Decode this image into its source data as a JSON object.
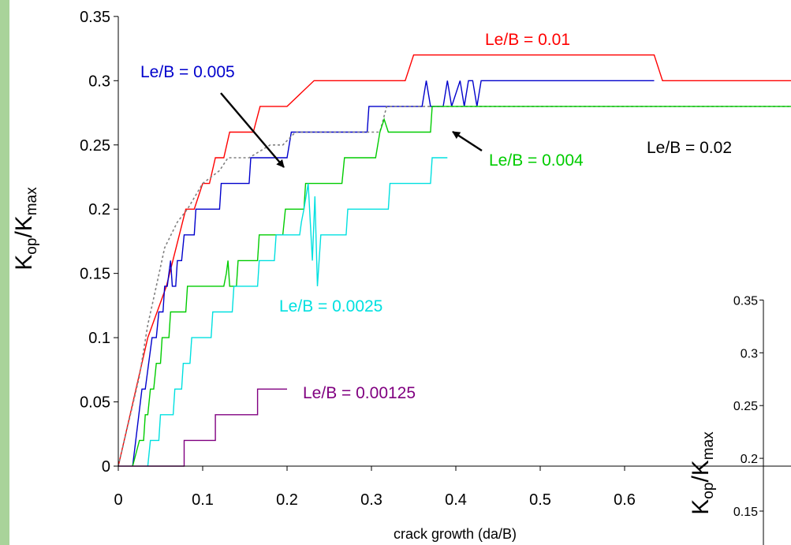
{
  "chart_data": [
    {
      "type": "line",
      "xlabel": "crack growth (da/B)",
      "ylabel": "K_op/K_max",
      "ylabel_main": "K",
      "ylabel_sub1": "op",
      "ylabel_slash": "/K",
      "ylabel_sub2": "max",
      "xlim": [
        0,
        0.7
      ],
      "ylim": [
        0,
        0.35
      ],
      "x_ticks": [
        "0",
        "0.1",
        "0.2",
        "0.3",
        "0.4",
        "0.5",
        "0.6"
      ],
      "y_ticks": [
        "0",
        "0.05",
        "0.1",
        "0.15",
        "0.2",
        "0.25",
        "0.3",
        "0.35"
      ],
      "grid": false,
      "legend": "none",
      "series": [
        {
          "name": "Le/B = 0.01",
          "color": "#ff0000",
          "dash": "solid",
          "points": [
            [
              0,
              0
            ],
            [
              0.035,
              0.1
            ],
            [
              0.057,
              0.14
            ],
            [
              0.08,
              0.2
            ],
            [
              0.09,
              0.2
            ],
            [
              0.1,
              0.22
            ],
            [
              0.108,
              0.22
            ],
            [
              0.115,
              0.24
            ],
            [
              0.125,
              0.24
            ],
            [
              0.132,
              0.26
            ],
            [
              0.16,
              0.26
            ],
            [
              0.168,
              0.28
            ],
            [
              0.2,
              0.28
            ],
            [
              0.232,
              0.3
            ],
            [
              0.34,
              0.3
            ],
            [
              0.35,
              0.32
            ],
            [
              0.635,
              0.32
            ],
            [
              0.645,
              0.3
            ],
            [
              0.8,
              0.3
            ]
          ]
        },
        {
          "name": "Le/B = 0.005",
          "color": "#0000cc",
          "dash": "solid",
          "points": [
            [
              0.017,
              0
            ],
            [
              0.028,
              0.06
            ],
            [
              0.032,
              0.06
            ],
            [
              0.04,
              0.1
            ],
            [
              0.045,
              0.1
            ],
            [
              0.048,
              0.12
            ],
            [
              0.053,
              0.12
            ],
            [
              0.055,
              0.14
            ],
            [
              0.058,
              0.14
            ],
            [
              0.06,
              0.15
            ],
            [
              0.062,
              0.16
            ],
            [
              0.064,
              0.14
            ],
            [
              0.068,
              0.14
            ],
            [
              0.07,
              0.16
            ],
            [
              0.075,
              0.16
            ],
            [
              0.078,
              0.18
            ],
            [
              0.09,
              0.18
            ],
            [
              0.092,
              0.2
            ],
            [
              0.12,
              0.2
            ],
            [
              0.122,
              0.22
            ],
            [
              0.155,
              0.22
            ],
            [
              0.157,
              0.24
            ],
            [
              0.2,
              0.24
            ],
            [
              0.205,
              0.26
            ],
            [
              0.295,
              0.26
            ],
            [
              0.297,
              0.28
            ],
            [
              0.36,
              0.28
            ],
            [
              0.365,
              0.3
            ],
            [
              0.37,
              0.28
            ],
            [
              0.385,
              0.28
            ],
            [
              0.39,
              0.3
            ],
            [
              0.395,
              0.28
            ],
            [
              0.405,
              0.3
            ],
            [
              0.41,
              0.28
            ],
            [
              0.415,
              0.3
            ],
            [
              0.42,
              0.3
            ],
            [
              0.425,
              0.28
            ],
            [
              0.43,
              0.3
            ],
            [
              0.635,
              0.3
            ]
          ]
        },
        {
          "name": "Le/B = 0.02",
          "color": "#808080",
          "dash": "dashed",
          "points": [
            [
              0,
              0
            ],
            [
              0.025,
              0.07
            ],
            [
              0.035,
              0.11
            ],
            [
              0.045,
              0.14
            ],
            [
              0.055,
              0.17
            ],
            [
              0.07,
              0.19
            ],
            [
              0.082,
              0.2
            ],
            [
              0.1,
              0.22
            ],
            [
              0.12,
              0.23
            ],
            [
              0.13,
              0.24
            ],
            [
              0.155,
              0.24
            ],
            [
              0.18,
              0.25
            ],
            [
              0.195,
              0.25
            ],
            [
              0.21,
              0.26
            ],
            [
              0.31,
              0.26
            ],
            [
              0.318,
              0.28
            ],
            [
              0.8,
              0.28
            ]
          ]
        },
        {
          "name": "Le/B = 0.004",
          "color": "#00cc00",
          "dash": "solid",
          "points": [
            [
              0.017,
              0
            ],
            [
              0.025,
              0.02
            ],
            [
              0.03,
              0.02
            ],
            [
              0.032,
              0.04
            ],
            [
              0.035,
              0.04
            ],
            [
              0.038,
              0.06
            ],
            [
              0.042,
              0.06
            ],
            [
              0.045,
              0.08
            ],
            [
              0.05,
              0.08
            ],
            [
              0.052,
              0.1
            ],
            [
              0.06,
              0.1
            ],
            [
              0.062,
              0.12
            ],
            [
              0.08,
              0.12
            ],
            [
              0.082,
              0.14
            ],
            [
              0.125,
              0.14
            ],
            [
              0.128,
              0.15
            ],
            [
              0.13,
              0.16
            ],
            [
              0.132,
              0.14
            ],
            [
              0.14,
              0.14
            ],
            [
              0.142,
              0.16
            ],
            [
              0.165,
              0.16
            ],
            [
              0.167,
              0.18
            ],
            [
              0.195,
              0.18
            ],
            [
              0.198,
              0.2
            ],
            [
              0.22,
              0.2
            ],
            [
              0.222,
              0.22
            ],
            [
              0.265,
              0.22
            ],
            [
              0.268,
              0.24
            ],
            [
              0.305,
              0.24
            ],
            [
              0.31,
              0.26
            ],
            [
              0.315,
              0.27
            ],
            [
              0.32,
              0.26
            ],
            [
              0.37,
              0.26
            ],
            [
              0.372,
              0.28
            ],
            [
              0.8,
              0.28
            ]
          ]
        },
        {
          "name": "Le/B = 0.0025",
          "color": "#00e0e0",
          "dash": "solid",
          "points": [
            [
              0.035,
              0
            ],
            [
              0.038,
              0.02
            ],
            [
              0.048,
              0.02
            ],
            [
              0.05,
              0.04
            ],
            [
              0.065,
              0.04
            ],
            [
              0.067,
              0.06
            ],
            [
              0.075,
              0.06
            ],
            [
              0.077,
              0.08
            ],
            [
              0.085,
              0.08
            ],
            [
              0.087,
              0.1
            ],
            [
              0.11,
              0.1
            ],
            [
              0.112,
              0.12
            ],
            [
              0.135,
              0.12
            ],
            [
              0.137,
              0.14
            ],
            [
              0.165,
              0.14
            ],
            [
              0.167,
              0.16
            ],
            [
              0.185,
              0.16
            ],
            [
              0.187,
              0.18
            ],
            [
              0.215,
              0.18
            ],
            [
              0.217,
              0.19
            ],
            [
              0.22,
              0.2
            ],
            [
              0.225,
              0.22
            ],
            [
              0.23,
              0.16
            ],
            [
              0.233,
              0.21
            ],
            [
              0.236,
              0.14
            ],
            [
              0.24,
              0.18
            ],
            [
              0.27,
              0.18
            ],
            [
              0.272,
              0.2
            ],
            [
              0.32,
              0.2
            ],
            [
              0.322,
              0.22
            ],
            [
              0.37,
              0.22
            ],
            [
              0.372,
              0.24
            ],
            [
              0.39,
              0.24
            ]
          ]
        },
        {
          "name": "Le/B = 0.00125",
          "color": "#800080",
          "dash": "solid",
          "points": [
            [
              0,
              0
            ],
            [
              0.078,
              0
            ],
            [
              0.078,
              0.02
            ],
            [
              0.115,
              0.02
            ],
            [
              0.115,
              0.04
            ],
            [
              0.165,
              0.04
            ],
            [
              0.165,
              0.06
            ],
            [
              0.2,
              0.06
            ]
          ]
        }
      ],
      "annotations": [
        {
          "text": "Le/B = 0.01",
          "color": "#ff0000"
        },
        {
          "text": "Le/B = 0.005",
          "color": "#0000cc"
        },
        {
          "text": "Le/B = 0.02",
          "color": "#000000"
        },
        {
          "text": "Le/B = 0.004",
          "color": "#00cc00"
        },
        {
          "text": "Le/B = 0.0025",
          "color": "#00e0e0"
        },
        {
          "text": "Le/B = 0.00125",
          "color": "#800080"
        }
      ]
    },
    {
      "type": "line",
      "ylabel": "K_op/K_max",
      "ylabel_main": "K",
      "ylabel_sub1": "op",
      "ylabel_slash": "/K",
      "ylabel_sub2": "max",
      "ylim": [
        0.15,
        0.35
      ],
      "y_ticks": [
        "0.15",
        "0.2",
        "0.25",
        "0.3",
        "0.35"
      ],
      "series": []
    }
  ]
}
